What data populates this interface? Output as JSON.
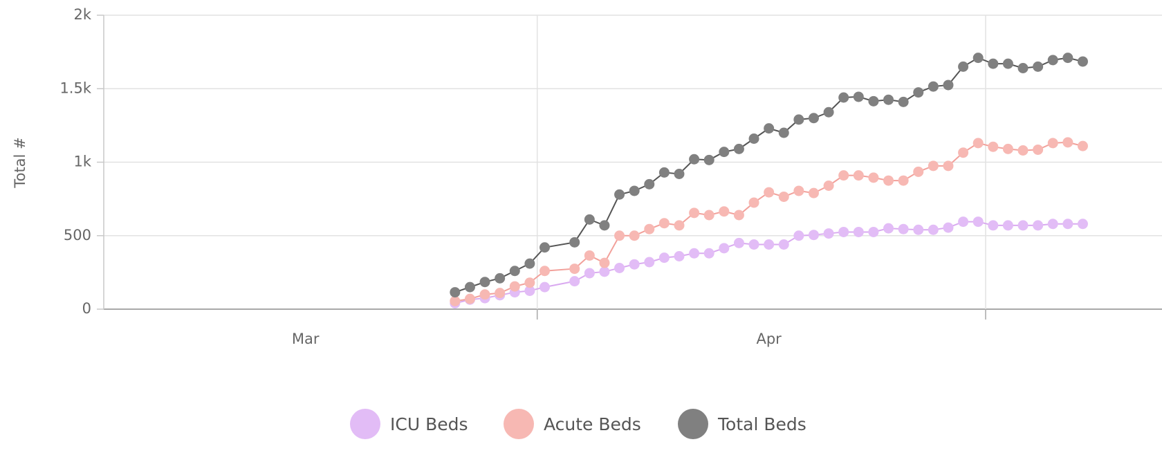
{
  "chart_data": {
    "type": "line",
    "y_label": "Total #",
    "x": [
      25,
      26,
      27,
      28,
      29,
      30,
      31,
      33,
      34,
      35,
      36,
      37,
      38,
      39,
      40,
      41,
      42,
      43,
      44,
      45,
      46,
      47,
      48,
      49,
      50,
      51,
      52,
      53,
      54,
      55,
      56,
      57,
      58,
      59,
      60,
      61,
      62,
      63,
      64,
      65,
      66,
      67
    ],
    "series": [
      {
        "name": "ICU Beds",
        "color": "#e2bcf6",
        "line_color": "#d9a9f0",
        "values": [
          40,
          65,
          75,
          95,
          115,
          125,
          150,
          190,
          245,
          255,
          280,
          305,
          320,
          350,
          360,
          380,
          380,
          415,
          450,
          440,
          440,
          440,
          500,
          505,
          515,
          525,
          525,
          525,
          550,
          545,
          540,
          540,
          555,
          595,
          595,
          570,
          570,
          570,
          570,
          580,
          580,
          580
        ]
      },
      {
        "name": "Acute Beds",
        "color": "#f7b8b3",
        "line_color": "#f2a09a",
        "values": [
          55,
          70,
          100,
          110,
          155,
          180,
          260,
          275,
          365,
          315,
          500,
          500,
          545,
          585,
          570,
          655,
          640,
          665,
          640,
          725,
          795,
          765,
          805,
          790,
          840,
          910,
          910,
          895,
          875,
          875,
          935,
          975,
          975,
          1065,
          1130,
          1105,
          1090,
          1080,
          1085,
          1130,
          1135,
          1110
        ]
      },
      {
        "name": "Total Beds",
        "color": "#808080",
        "line_color": "#555555",
        "values": [
          115,
          150,
          185,
          210,
          260,
          310,
          420,
          455,
          610,
          570,
          780,
          805,
          850,
          930,
          920,
          1020,
          1015,
          1070,
          1090,
          1160,
          1230,
          1200,
          1290,
          1300,
          1340,
          1440,
          1445,
          1415,
          1425,
          1410,
          1475,
          1515,
          1525,
          1650,
          1710,
          1670,
          1670,
          1640,
          1650,
          1695,
          1710,
          1685
        ]
      }
    ],
    "xlim": [
      1.5,
      72.3
    ],
    "xticks": [
      {
        "value": 15,
        "label": "Mar"
      },
      {
        "value": 46,
        "label": "Apr"
      }
    ],
    "xgridlines": [
      30.5,
      60.5
    ],
    "ylim": [
      0,
      2000
    ],
    "yticks": [
      0,
      500,
      {
        "value": 1000,
        "label": "1k"
      },
      {
        "value": 1500,
        "label": "1.5k"
      },
      {
        "value": 2000,
        "label": "2k"
      }
    ],
    "grid": true,
    "legend": "bottom"
  }
}
